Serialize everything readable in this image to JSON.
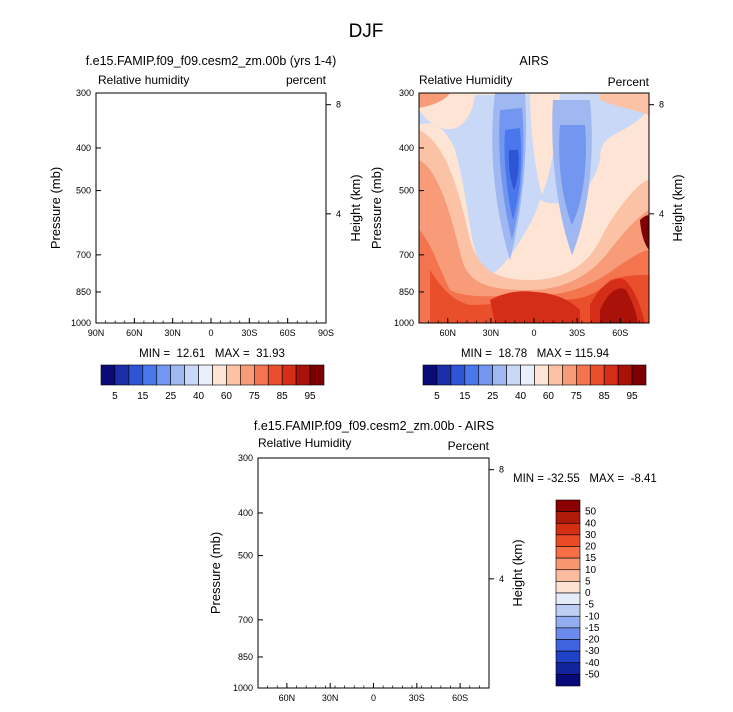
{
  "chart_data": {
    "type": "heatmap",
    "title": "DJF",
    "panels": [
      {
        "id": "model",
        "title": "f.e15.FAMIP.f09_f09.cesm2_zm.00b (yrs 1-4)",
        "left_label": "Relative humidity",
        "right_label": "percent",
        "ylabel": "Pressure (mb)",
        "ylabel_right": "Height (km)",
        "yticks": [
          "300",
          "400",
          "500",
          "700",
          "850",
          "1000"
        ],
        "height_ticks": [
          "8",
          "4"
        ],
        "xticks": [
          "90N",
          "60N",
          "30N",
          "0",
          "30S",
          "60S",
          "90S"
        ],
        "stats": "MIN =  12.61   MAX =  31.93",
        "field_rendered": false
      },
      {
        "id": "obs",
        "title": "AIRS",
        "left_label": "Relative Humidity",
        "right_label": "Percent",
        "ylabel": "Pressure (mb)",
        "ylabel_right": "Height (km)",
        "yticks": [
          "300",
          "400",
          "500",
          "700",
          "850",
          "1000"
        ],
        "height_ticks": [
          "8",
          "4"
        ],
        "xticks": [
          "60N",
          "30N",
          "0",
          "30S",
          "60S"
        ],
        "stats": "MIN =  18.78   MAX = 115.94",
        "field_rendered": true,
        "x_range_lat": [
          80,
          -80
        ],
        "y_range_mb": [
          300,
          1000
        ]
      },
      {
        "id": "diff",
        "title": "f.e15.FAMIP.f09_f09.cesm2_zm.00b - AIRS",
        "left_label": "Relative Humidity",
        "right_label": "Percent",
        "ylabel": "Pressure (mb)",
        "ylabel_right": "Height (km)",
        "yticks": [
          "300",
          "400",
          "500",
          "700",
          "850",
          "1000"
        ],
        "height_ticks": [
          "8",
          "4"
        ],
        "xticks": [
          "60N",
          "30N",
          "0",
          "30S",
          "60S"
        ],
        "stats": "MIN = -32.55   MAX =  -8.41",
        "field_rendered": false
      }
    ],
    "colorbar_abs": {
      "labels": [
        "5",
        "15",
        "25",
        "40",
        "60",
        "75",
        "85",
        "95"
      ],
      "colors": [
        "#0a0a78",
        "#1c2fa6",
        "#2d55d6",
        "#4a78ec",
        "#7397f0",
        "#9fb8f2",
        "#c8d8f6",
        "#eaf0fb",
        "#fde4d4",
        "#fbc2a6",
        "#f79b78",
        "#f3744f",
        "#ea4f2c",
        "#d42e18",
        "#a81208",
        "#7c0000"
      ]
    },
    "colorbar_diff": {
      "labels": [
        "50",
        "40",
        "30",
        "20",
        "15",
        "10",
        "5",
        "0",
        "-5",
        "-10",
        "-15",
        "-20",
        "-30",
        "-40",
        "-50"
      ],
      "colors": [
        "#8b0000",
        "#b01a08",
        "#d42e12",
        "#ea4a24",
        "#f56e45",
        "#f89670",
        "#fbbca0",
        "#fde2d2",
        "#e4ecf9",
        "#bccef4",
        "#93aef0",
        "#6b8cec",
        "#3f63e0",
        "#2042c6",
        "#11249e",
        "#070a78"
      ]
    }
  }
}
